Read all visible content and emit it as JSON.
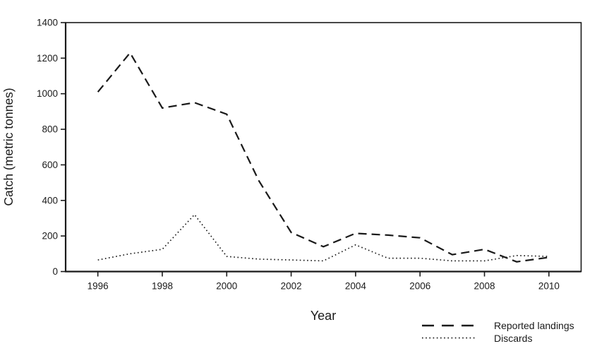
{
  "chart_data": {
    "type": "line",
    "title": "",
    "xlabel": "Year",
    "ylabel": "Catch (metric tonnes)",
    "xlim": [
      1995,
      2011
    ],
    "ylim": [
      0,
      1400
    ],
    "x_ticks": [
      1996,
      1998,
      2000,
      2002,
      2004,
      2006,
      2008,
      2010
    ],
    "y_ticks": [
      0,
      200,
      400,
      600,
      800,
      1000,
      1200,
      1400
    ],
    "grid": false,
    "legend_position": "below-right",
    "x": [
      1996,
      1997,
      1998,
      1999,
      2000,
      2001,
      2002,
      2003,
      2004,
      2005,
      2006,
      2007,
      2008,
      2009,
      2010
    ],
    "series": [
      {
        "name": "Reported landings",
        "line_style": "dashed",
        "values": [
          1010,
          1230,
          920,
          950,
          885,
          510,
          220,
          140,
          215,
          205,
          190,
          95,
          125,
          55,
          80
        ]
      },
      {
        "name": "Discards",
        "line_style": "dotted",
        "values": [
          65,
          100,
          125,
          320,
          85,
          70,
          65,
          60,
          150,
          75,
          75,
          60,
          60,
          90,
          85
        ]
      }
    ]
  },
  "colors": {
    "line": "#1a1a1a",
    "background": "#ffffff",
    "text": "#1a1a1a"
  }
}
